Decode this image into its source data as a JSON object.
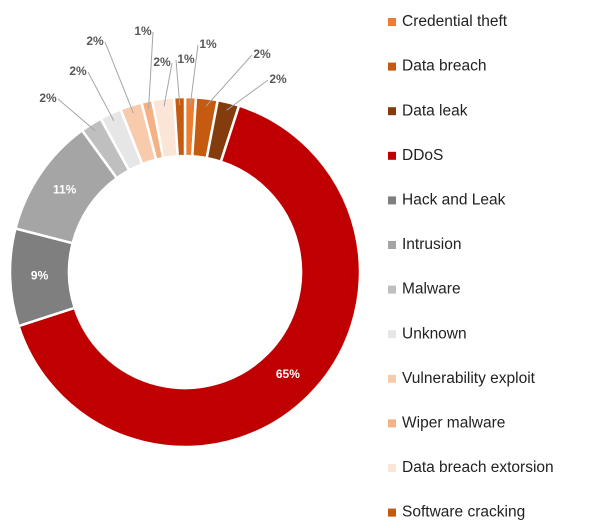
{
  "chart_data": {
    "type": "donut",
    "categories": [
      "Credential theft",
      "Data breach",
      "Data leak",
      "DDoS",
      "Hack and Leak",
      "Intrusion",
      "Malware",
      "Unknown",
      "Vulnerability exploit",
      "Wiper malware",
      "Data breach extorsion",
      "Software cracking"
    ],
    "values": [
      1,
      2,
      2,
      65,
      9,
      11,
      2,
      2,
      2,
      1,
      2,
      1
    ],
    "value_labels": [
      "1%",
      "2%",
      "2%",
      "65%",
      "9%",
      "11%",
      "2%",
      "2%",
      "2%",
      "1%",
      "2%",
      "1%"
    ],
    "colors": [
      "#ed7d31",
      "#c55a11",
      "#843c0c",
      "#c00000",
      "#7f7f7f",
      "#a5a5a5",
      "#bfbfbf",
      "#e7e6e6",
      "#f8cbad",
      "#f4b183",
      "#fbe5d6",
      "#c55a11"
    ],
    "legend": "right"
  }
}
